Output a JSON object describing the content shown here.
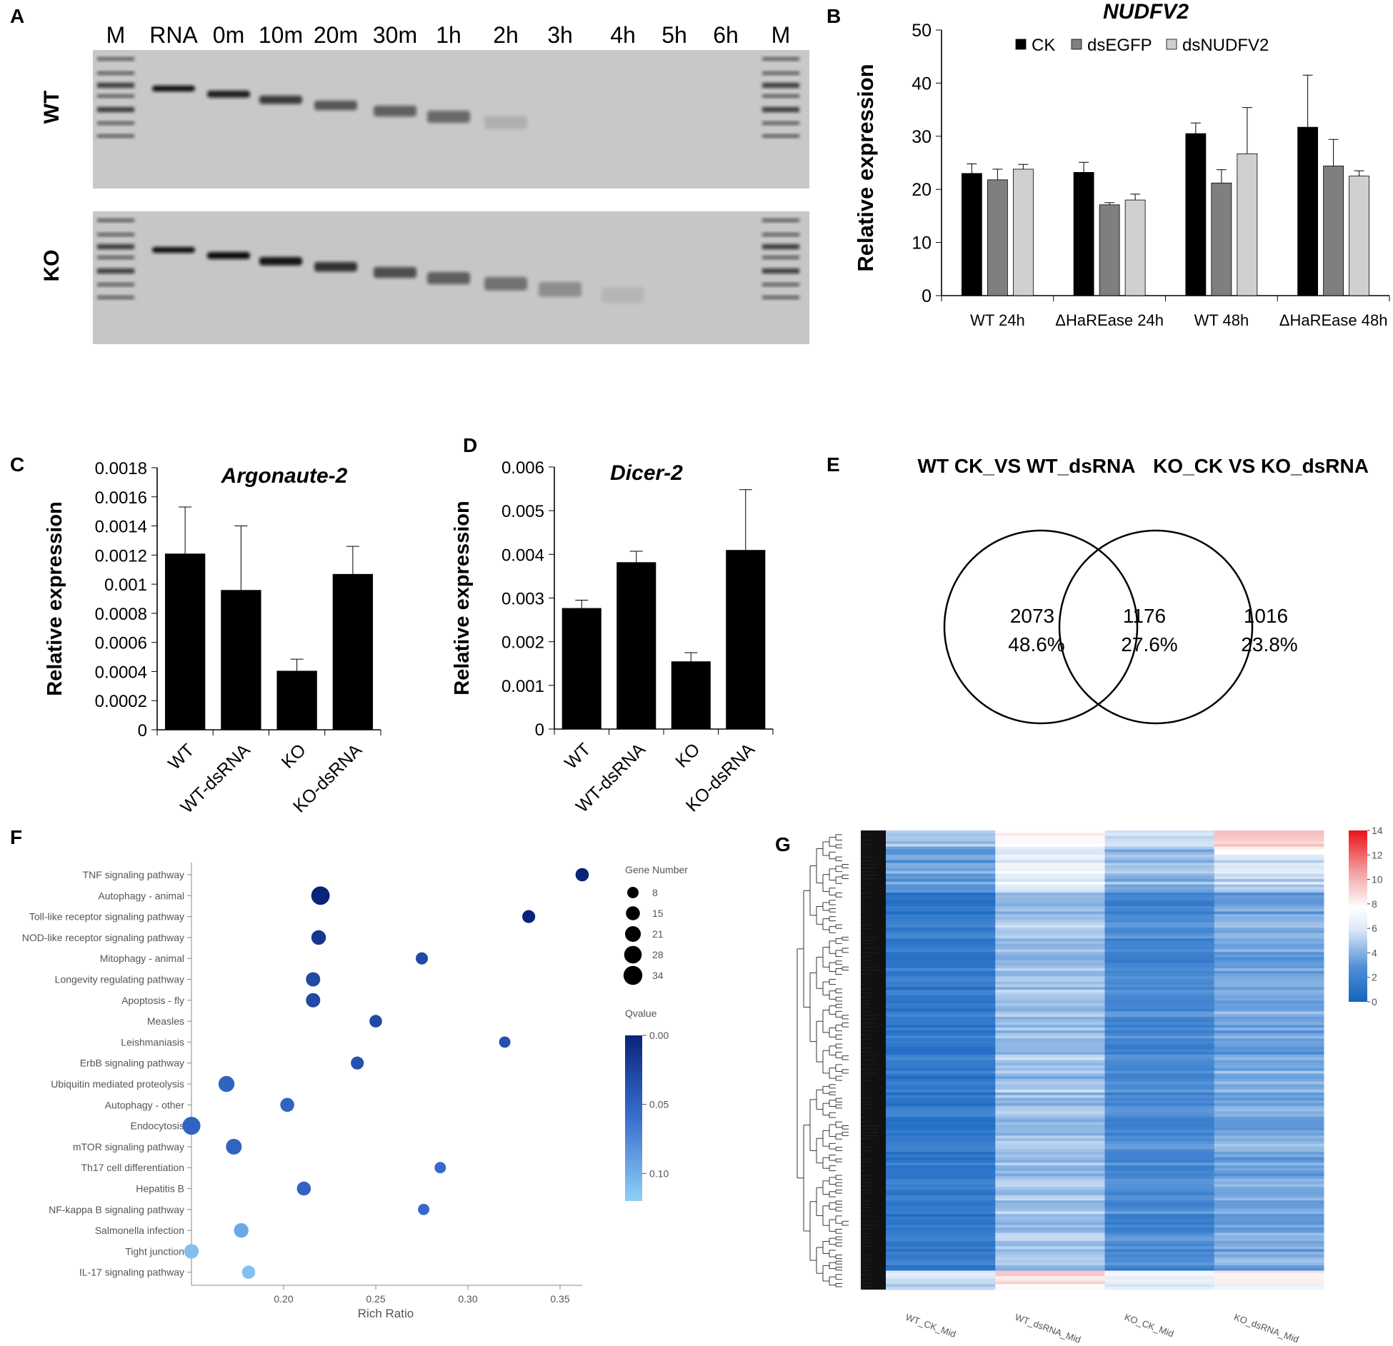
{
  "panels": {
    "A": "A",
    "B": "B",
    "C": "C",
    "D": "D",
    "E": "E",
    "F": "F",
    "G": "G"
  },
  "panelA": {
    "lanes": [
      "M",
      "RNA",
      "0m",
      "10m",
      "20m",
      "30m",
      "1h",
      "2h",
      "3h",
      "4h",
      "5h",
      "6h",
      "M"
    ],
    "rows": [
      "WT",
      "KO"
    ],
    "wt_intensity": [
      1,
      1,
      0.9,
      0.75,
      0.6,
      0.55,
      0.5,
      0.12,
      0,
      0,
      0,
      0,
      1
    ],
    "ko_intensity": [
      1,
      1,
      1,
      0.95,
      0.8,
      0.65,
      0.55,
      0.45,
      0.3,
      0.08,
      0,
      0,
      1
    ]
  },
  "chart_data": [
    {
      "id": "B",
      "type": "bar",
      "title": "NUDFV2",
      "ylabel": "Relative expression",
      "xlabel": "",
      "ylim": [
        0,
        50
      ],
      "yticks": [
        0,
        10,
        20,
        30,
        40,
        50
      ],
      "categories": [
        "WT 24h",
        "ΔHaREase 24h",
        "WT 48h",
        "ΔHaREase 48h"
      ],
      "series": [
        {
          "name": "CK",
          "color": "#000000",
          "values": [
            23.0,
            23.2,
            30.5,
            31.7
          ],
          "errors": [
            1.8,
            1.9,
            2.0,
            9.8
          ]
        },
        {
          "name": "dsEGFP",
          "color": "#7f7f7f",
          "values": [
            21.8,
            17.1,
            21.2,
            24.4
          ],
          "errors": [
            2.0,
            0.4,
            2.5,
            5.0
          ]
        },
        {
          "name": "dsNUDFV2",
          "color": "#d0d0d0",
          "values": [
            23.8,
            18.0,
            26.7,
            22.5
          ],
          "errors": [
            0.9,
            1.1,
            8.7,
            1.0
          ]
        }
      ],
      "legend": "top"
    },
    {
      "id": "C",
      "type": "bar",
      "title": "Argonaute-2",
      "ylabel": "Relative expression",
      "xlabel": "",
      "ylim": [
        0,
        0.0018
      ],
      "yticks": [
        "0",
        "0.0002",
        "0.0004",
        "0.0006",
        "0.0008",
        "0.001",
        "0.0012",
        "0.0014",
        "0.0016",
        "0.0018"
      ],
      "categories": [
        "WT",
        "WT-dsRNA",
        "KO",
        "KO-dsRNA"
      ],
      "values": [
        0.00121,
        0.00096,
        0.000405,
        0.00107
      ],
      "errors": [
        0.00032,
        0.00044,
        8e-05,
        0.00019
      ]
    },
    {
      "id": "D",
      "type": "bar",
      "title": "Dicer-2",
      "ylabel": "Relative expression",
      "xlabel": "",
      "ylim": [
        0,
        0.006
      ],
      "yticks": [
        "0",
        "0.001",
        "0.002",
        "0.003",
        "0.004",
        "0.005",
        "0.006"
      ],
      "categories": [
        "WT",
        "WT-dsRNA",
        "KO",
        "KO-dsRNA"
      ],
      "values": [
        0.00277,
        0.00382,
        0.00155,
        0.0041
      ],
      "errors": [
        0.00018,
        0.00025,
        0.0002,
        0.00138
      ]
    },
    {
      "id": "F",
      "type": "scatter",
      "xlabel": "Rich Ratio",
      "xlim": [
        0.15,
        0.365
      ],
      "xticks": [
        "0.20",
        "0.25",
        "0.30",
        "0.35"
      ],
      "categories": [
        "TNF signaling pathway",
        "Autophagy - animal",
        "Toll-like receptor signaling pathway",
        "NOD-like receptor signaling pathway",
        "Mitophagy - animal",
        "Longevity regulating pathway",
        "Apoptosis - fly",
        "Measles",
        "Leishmaniasis",
        "ErbB signaling pathway",
        "Ubiquitin mediated proteolysis",
        "Autophagy - other",
        "Endocytosis",
        "mTOR signaling pathway",
        "Th17 cell differentiation",
        "Hepatitis B",
        "NF-kappa B signaling pathway",
        "Salmonella infection",
        "Tight junction",
        "IL-17 signaling pathway"
      ],
      "x": [
        0.362,
        0.22,
        0.333,
        0.219,
        0.275,
        0.216,
        0.216,
        0.25,
        0.32,
        0.24,
        0.169,
        0.202,
        0.15,
        0.173,
        0.285,
        0.211,
        0.276,
        0.177,
        0.15,
        0.181
      ],
      "gene_number": [
        13,
        32,
        12,
        17,
        10,
        16,
        16,
        11,
        8,
        12,
        22,
        15,
        30,
        21,
        8,
        15,
        8,
        17,
        17,
        13
      ],
      "qvalue": [
        0.0,
        0.0,
        0.0,
        0.015,
        0.03,
        0.03,
        0.03,
        0.03,
        0.035,
        0.035,
        0.05,
        0.05,
        0.05,
        0.05,
        0.055,
        0.05,
        0.055,
        0.095,
        0.11,
        0.11
      ],
      "size_legend": {
        "title": "Gene Number",
        "values": [
          "8",
          "15",
          "21",
          "28",
          "34"
        ]
      },
      "color_legend": {
        "title": "Qvalue",
        "ticks": [
          "0.00",
          "0.05",
          "0.10"
        ]
      }
    },
    {
      "id": "G",
      "type": "heatmap",
      "columns": [
        "WT_CK_Mid",
        "WT_dsRNA_Mid",
        "KO_CK_Mid",
        "KO_dsRNA_Mid"
      ],
      "colorbar_ticks": [
        "0",
        "2",
        "4",
        "6",
        "8",
        "10",
        "12",
        "14"
      ],
      "colorbar_range": [
        0,
        14
      ],
      "column_base_values": [
        1.5,
        4.6,
        2.4,
        3.7
      ]
    }
  ],
  "venn": {
    "left_title": "WT CK_VS WT_dsRNA",
    "right_title": "KO_CK VS KO_dsRNA",
    "left_count": "2073",
    "left_pct": "48.6%",
    "mid_count": "1176",
    "mid_pct": "27.6%",
    "right_count": "1016",
    "right_pct": "23.8%"
  }
}
